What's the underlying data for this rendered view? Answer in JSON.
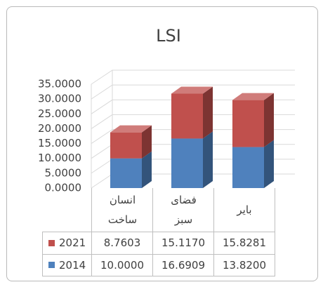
{
  "chart_data": {
    "type": "bar3d_stacked",
    "title": "LSI",
    "categories": [
      "انسان ساخت",
      "فضای سبز",
      "بایر"
    ],
    "series": [
      {
        "name": "2014",
        "color": "#4f81bd",
        "values": [
          10.0,
          16.6909,
          13.82
        ],
        "value_labels": [
          "10.0000",
          "16.6909",
          "13.8200"
        ]
      },
      {
        "name": "2021",
        "color": "#c0504d",
        "values": [
          8.7603,
          15.117,
          15.8281
        ],
        "value_labels": [
          "8.7603",
          "15.1170",
          "15.8281"
        ]
      }
    ],
    "ylim": [
      0,
      35
    ],
    "yticks": [
      {
        "value": 0,
        "label": "0.0000"
      },
      {
        "value": 5,
        "label": "5.0000"
      },
      {
        "value": 10,
        "label": "10.0000"
      },
      {
        "value": 15,
        "label": "15.0000"
      },
      {
        "value": 20,
        "label": "20.0000"
      },
      {
        "value": 25,
        "label": "25.0000"
      },
      {
        "value": 30,
        "label": "30.0000"
      },
      {
        "value": 35,
        "label": "35.0000"
      }
    ],
    "grid": true,
    "data_table": true
  }
}
